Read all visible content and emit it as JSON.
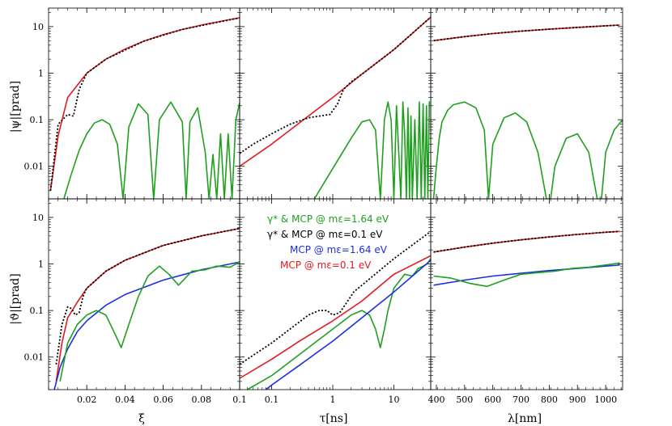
{
  "colors": {
    "red": "#e41a1c",
    "green": "#1ea01e",
    "blue": "#1a2ee6",
    "black": "#000000"
  },
  "yaxis": {
    "ticks": [
      10,
      1,
      0.1,
      0.01
    ],
    "tick_labels": [
      "10",
      "1",
      "0.1",
      "0.01"
    ],
    "top_label": "|ψ|[prad]",
    "bottom_label": "|ϑ|[prad]"
  },
  "xaxis": {
    "xi_label": "ξ",
    "tau_label": "τ[ns]",
    "lambda_label": "λ[nm]",
    "xi_ticks": [
      "0.02",
      "0.04",
      "0.06",
      "0.08",
      "0.1"
    ],
    "tau_ticks": [
      "0.1",
      "1",
      "10"
    ],
    "lambda_ticks": [
      "400",
      "500",
      "600",
      "700",
      "800",
      "900",
      "1000"
    ]
  },
  "legend": [
    {
      "text": "γ* & MCP @ mε=1.64 eV",
      "color": "green"
    },
    {
      "text": "γ* & MCP @ mε=0.1 eV",
      "color": "black"
    },
    {
      "text": "MCP @ mε=1.64 eV",
      "color": "blue"
    },
    {
      "text": "MCP @ mε=0.1 eV",
      "color": "red"
    }
  ],
  "chart_data": [
    {
      "type": "line",
      "panel": "psi vs xi",
      "xscale": "linear",
      "yscale": "log",
      "xlabel": "ξ",
      "ylabel": "|ψ|[prad]",
      "xlim": [
        0,
        0.1
      ],
      "ylim": [
        0.002,
        25
      ],
      "series": [
        {
          "color": "red",
          "style": "solid",
          "x": [
            0.001,
            0.005,
            0.01,
            0.02,
            0.03,
            0.04,
            0.05,
            0.06,
            0.07,
            0.08,
            0.09,
            0.1
          ],
          "y": [
            0.003,
            0.045,
            0.3,
            1.0,
            2.0,
            3.3,
            4.9,
            6.7,
            8.7,
            10.8,
            13.0,
            15.5
          ]
        },
        {
          "color": "black",
          "style": "dotted",
          "x": [
            0.001,
            0.005,
            0.01,
            0.013,
            0.016,
            0.02,
            0.03,
            0.05,
            0.07,
            0.1
          ],
          "y": [
            0.003,
            0.08,
            0.13,
            0.12,
            0.45,
            1.0,
            2.0,
            4.9,
            8.7,
            15.5
          ]
        },
        {
          "color": "green",
          "style": "solid",
          "x": [
            0.008,
            0.012,
            0.016,
            0.02,
            0.024,
            0.028,
            0.032,
            0.036,
            0.039,
            0.042,
            0.047,
            0.052,
            0.055,
            0.058,
            0.064,
            0.07,
            0.072,
            0.074,
            0.078,
            0.082,
            0.084,
            0.086,
            0.088,
            0.09,
            0.092,
            0.094,
            0.096,
            0.098,
            0.1
          ],
          "y": [
            0.002,
            0.007,
            0.022,
            0.05,
            0.085,
            0.1,
            0.08,
            0.03,
            0.002,
            0.07,
            0.22,
            0.13,
            0.002,
            0.1,
            0.24,
            0.09,
            0.002,
            0.09,
            0.18,
            0.02,
            0.002,
            0.018,
            0.002,
            0.05,
            0.002,
            0.05,
            0.002,
            0.1,
            0.23
          ]
        }
      ]
    },
    {
      "type": "line",
      "panel": "psi vs tau",
      "xscale": "log",
      "yscale": "log",
      "xlabel": "τ[ns]",
      "ylabel": "|ψ|[prad]",
      "xlim": [
        0.03,
        40
      ],
      "ylim": [
        0.002,
        25
      ],
      "series": [
        {
          "color": "red",
          "style": "solid",
          "x": [
            0.03,
            0.1,
            0.3,
            1,
            3,
            10,
            40
          ],
          "y": [
            0.01,
            0.03,
            0.09,
            0.3,
            0.95,
            3.2,
            16
          ]
        },
        {
          "color": "black",
          "style": "dotted",
          "x": [
            0.03,
            0.05,
            0.1,
            0.2,
            0.4,
            0.6,
            0.9,
            1.2,
            1.5,
            2.0,
            3,
            10,
            40
          ],
          "y": [
            0.019,
            0.03,
            0.05,
            0.08,
            0.11,
            0.12,
            0.13,
            0.22,
            0.45,
            0.65,
            0.95,
            3.2,
            16
          ]
        },
        {
          "color": "green",
          "style": "solid",
          "x": [
            0.5,
            1,
            2,
            3,
            4,
            5,
            6,
            7,
            8,
            9,
            10,
            11,
            12,
            13,
            14,
            15,
            16,
            17,
            18,
            19,
            20,
            22,
            24,
            26,
            28,
            30,
            32,
            34,
            36,
            38
          ],
          "y": [
            0.002,
            0.009,
            0.04,
            0.09,
            0.1,
            0.06,
            0.002,
            0.1,
            0.24,
            0.1,
            0.002,
            0.2,
            0.02,
            0.002,
            0.24,
            0.05,
            0.002,
            0.18,
            0.002,
            0.12,
            0.002,
            0.1,
            0.002,
            0.24,
            0.002,
            0.22,
            0.002,
            0.2,
            0.002,
            0.25
          ]
        }
      ]
    },
    {
      "type": "line",
      "panel": "psi vs lambda",
      "xscale": "linear",
      "yscale": "log",
      "xlabel": "λ[nm]",
      "ylabel": "|ψ|[prad]",
      "xlim": [
        380,
        1060
      ],
      "ylim": [
        0.002,
        25
      ],
      "series": [
        {
          "color": "red",
          "style": "solid",
          "x": [
            390,
            500,
            600,
            700,
            800,
            900,
            1000,
            1050
          ],
          "y": [
            5.0,
            6.1,
            7.1,
            8.0,
            8.8,
            9.6,
            10.4,
            10.8
          ]
        },
        {
          "color": "black",
          "style": "dotted",
          "x": [
            390,
            500,
            600,
            700,
            800,
            900,
            1000,
            1050
          ],
          "y": [
            5.0,
            6.1,
            7.1,
            8.0,
            8.8,
            9.6,
            10.4,
            10.8
          ]
        },
        {
          "color": "green",
          "style": "solid",
          "x": [
            390,
            400,
            410,
            420,
            440,
            460,
            500,
            540,
            570,
            585,
            600,
            640,
            680,
            720,
            760,
            790,
            805,
            820,
            860,
            900,
            940,
            970,
            985,
            1000,
            1030,
            1060
          ],
          "y": [
            0.002,
            0.01,
            0.04,
            0.09,
            0.16,
            0.21,
            0.24,
            0.18,
            0.06,
            0.002,
            0.03,
            0.11,
            0.14,
            0.09,
            0.02,
            0.002,
            0.002,
            0.01,
            0.04,
            0.05,
            0.02,
            0.002,
            0.002,
            0.02,
            0.06,
            0.1
          ]
        }
      ]
    },
    {
      "type": "line",
      "panel": "theta vs xi",
      "xscale": "linear",
      "yscale": "log",
      "xlabel": "ξ",
      "ylabel": "|ϑ|[prad]",
      "xlim": [
        0,
        0.1
      ],
      "ylim": [
        0.002,
        25
      ],
      "series": [
        {
          "color": "red",
          "style": "solid",
          "x": [
            0.004,
            0.007,
            0.01,
            0.015,
            0.02,
            0.03,
            0.04,
            0.06,
            0.08,
            0.1
          ],
          "y": [
            0.003,
            0.02,
            0.07,
            0.15,
            0.3,
            0.7,
            1.2,
            2.5,
            4.0,
            5.8
          ]
        },
        {
          "color": "black",
          "style": "dotted",
          "x": [
            0.004,
            0.007,
            0.01,
            0.012,
            0.014,
            0.016,
            0.018,
            0.02,
            0.03,
            0.04,
            0.06,
            0.08,
            0.1
          ],
          "y": [
            0.007,
            0.05,
            0.12,
            0.11,
            0.08,
            0.09,
            0.2,
            0.3,
            0.7,
            1.2,
            2.5,
            4.0,
            5.8
          ]
        },
        {
          "color": "blue",
          "style": "solid",
          "x": [
            0.003,
            0.006,
            0.01,
            0.015,
            0.02,
            0.03,
            0.04,
            0.06,
            0.08,
            0.1
          ],
          "y": [
            0.002,
            0.006,
            0.015,
            0.035,
            0.06,
            0.13,
            0.22,
            0.45,
            0.75,
            1.1
          ]
        },
        {
          "color": "green",
          "style": "solid",
          "x": [
            0.006,
            0.01,
            0.015,
            0.02,
            0.025,
            0.03,
            0.035,
            0.038,
            0.042,
            0.047,
            0.052,
            0.058,
            0.063,
            0.068,
            0.075,
            0.082,
            0.088,
            0.095,
            0.1
          ],
          "y": [
            0.003,
            0.02,
            0.05,
            0.08,
            0.1,
            0.08,
            0.03,
            0.016,
            0.05,
            0.2,
            0.55,
            0.9,
            0.6,
            0.35,
            0.7,
            0.75,
            0.9,
            0.85,
            1.1
          ]
        }
      ]
    },
    {
      "type": "line",
      "panel": "theta vs tau",
      "xscale": "log",
      "yscale": "log",
      "xlabel": "τ[ns]",
      "ylabel": "|ϑ|[prad]",
      "xlim": [
        0.03,
        40
      ],
      "ylim": [
        0.002,
        25
      ],
      "series": [
        {
          "color": "red",
          "style": "solid",
          "x": [
            0.03,
            0.1,
            0.3,
            1,
            3,
            10,
            40
          ],
          "y": [
            0.0035,
            0.009,
            0.023,
            0.06,
            0.16,
            0.6,
            1.5
          ]
        },
        {
          "color": "black",
          "style": "dotted",
          "x": [
            0.03,
            0.05,
            0.1,
            0.2,
            0.4,
            0.6,
            0.8,
            1.0,
            1.3,
            1.7,
            2.2,
            3,
            10,
            40
          ],
          "y": [
            0.007,
            0.011,
            0.02,
            0.04,
            0.08,
            0.1,
            0.1,
            0.08,
            0.09,
            0.15,
            0.25,
            0.35,
            1.3,
            5.0
          ]
        },
        {
          "color": "green",
          "style": "solid",
          "x": [
            0.04,
            0.1,
            0.3,
            1,
            2,
            3,
            4,
            5,
            6,
            7,
            8,
            10,
            15,
            20,
            25,
            30,
            35,
            40
          ],
          "y": [
            0.002,
            0.004,
            0.012,
            0.04,
            0.08,
            0.1,
            0.08,
            0.04,
            0.016,
            0.04,
            0.1,
            0.3,
            0.6,
            0.55,
            0.8,
            0.9,
            1.0,
            1.3
          ]
        },
        {
          "color": "blue",
          "style": "solid",
          "x": [
            0.08,
            0.1,
            0.3,
            1,
            3,
            10,
            40
          ],
          "y": [
            0.002,
            0.0025,
            0.007,
            0.022,
            0.07,
            0.25,
            1.2
          ]
        }
      ]
    },
    {
      "type": "line",
      "panel": "theta vs lambda",
      "xscale": "linear",
      "yscale": "log",
      "xlabel": "λ[nm]",
      "ylabel": "|ϑ|[prad]",
      "xlim": [
        380,
        1060
      ],
      "ylim": [
        0.002,
        25
      ],
      "series": [
        {
          "color": "red",
          "style": "solid",
          "x": [
            390,
            500,
            600,
            700,
            800,
            900,
            1000,
            1050
          ],
          "y": [
            1.8,
            2.3,
            2.8,
            3.3,
            3.8,
            4.3,
            4.8,
            5.0
          ]
        },
        {
          "color": "black",
          "style": "dotted",
          "x": [
            390,
            500,
            600,
            700,
            800,
            900,
            1000,
            1050
          ],
          "y": [
            1.8,
            2.3,
            2.8,
            3.3,
            3.8,
            4.3,
            4.8,
            5.0
          ]
        },
        {
          "color": "blue",
          "style": "solid",
          "x": [
            390,
            500,
            600,
            700,
            800,
            900,
            1000,
            1050
          ],
          "y": [
            0.35,
            0.45,
            0.55,
            0.63,
            0.72,
            0.8,
            0.9,
            0.95
          ]
        },
        {
          "color": "green",
          "style": "solid",
          "x": [
            390,
            450,
            520,
            580,
            640,
            700,
            760,
            820,
            880,
            940,
            1000,
            1050
          ],
          "y": [
            0.55,
            0.5,
            0.38,
            0.33,
            0.45,
            0.6,
            0.65,
            0.7,
            0.8,
            0.85,
            0.95,
            1.05
          ]
        }
      ]
    }
  ]
}
